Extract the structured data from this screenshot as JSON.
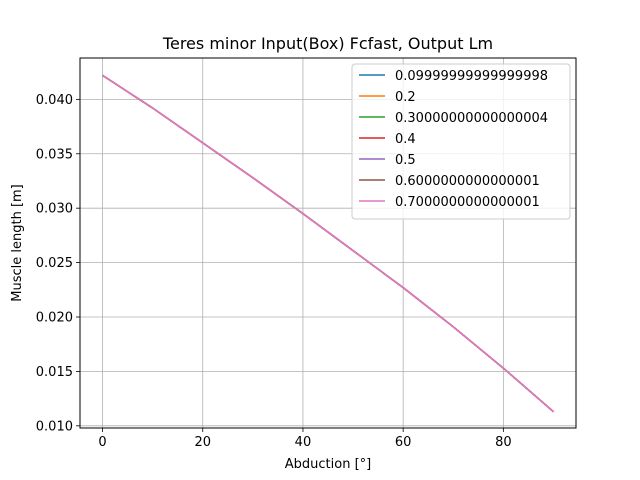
{
  "chart_data": {
    "type": "line",
    "title": "Teres minor Input(Box) Fcfast, Output Lm",
    "xlabel": "Abduction [°]",
    "ylabel": "Muscle length [m]",
    "xlim": [
      -4.5,
      94.5
    ],
    "ylim": [
      0.0098,
      0.0438
    ],
    "xticks": [
      0,
      20,
      40,
      60,
      80
    ],
    "yticks": [
      0.01,
      0.015,
      0.02,
      0.025,
      0.03,
      0.035,
      0.04
    ],
    "ytick_labels": [
      "0.010",
      "0.015",
      "0.020",
      "0.025",
      "0.030",
      "0.035",
      "0.040"
    ],
    "grid": true,
    "legend_position": "top-right",
    "x": [
      0,
      10,
      20,
      30,
      40,
      50,
      60,
      70,
      80,
      90
    ],
    "series": [
      {
        "name": "0.09999999999999998",
        "color": "#1f77b4",
        "values": [
          0.0422,
          0.0392,
          0.036,
          0.0328,
          0.0295,
          0.0261,
          0.0227,
          0.0191,
          0.0153,
          0.0113
        ]
      },
      {
        "name": "0.2",
        "color": "#ff7f0e",
        "values": [
          0.0422,
          0.0392,
          0.036,
          0.0328,
          0.0295,
          0.0261,
          0.0227,
          0.0191,
          0.0153,
          0.0113
        ]
      },
      {
        "name": "0.30000000000000004",
        "color": "#2ca02c",
        "values": [
          0.0422,
          0.0392,
          0.036,
          0.0328,
          0.0295,
          0.0261,
          0.0227,
          0.0191,
          0.0153,
          0.0113
        ]
      },
      {
        "name": "0.4",
        "color": "#d62728",
        "values": [
          0.0422,
          0.0392,
          0.036,
          0.0328,
          0.0295,
          0.0261,
          0.0227,
          0.0191,
          0.0153,
          0.0113
        ]
      },
      {
        "name": "0.5",
        "color": "#9467bd",
        "values": [
          0.0422,
          0.0392,
          0.036,
          0.0328,
          0.0295,
          0.0261,
          0.0227,
          0.0191,
          0.0153,
          0.0113
        ]
      },
      {
        "name": "0.6000000000000001",
        "color": "#8c564b",
        "values": [
          0.0422,
          0.0392,
          0.036,
          0.0328,
          0.0295,
          0.0261,
          0.0227,
          0.0191,
          0.0153,
          0.0113
        ]
      },
      {
        "name": "0.7000000000000001",
        "color": "#e377c2",
        "values": [
          0.0422,
          0.0392,
          0.036,
          0.0328,
          0.0295,
          0.0261,
          0.0227,
          0.0191,
          0.0153,
          0.0113
        ]
      }
    ]
  }
}
